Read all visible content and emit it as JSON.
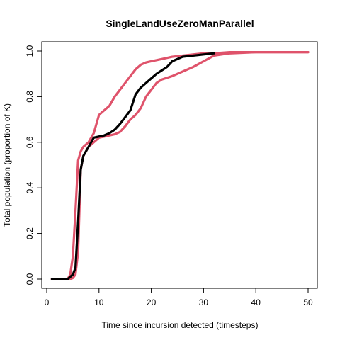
{
  "chart_data": {
    "type": "line",
    "title": "SingleLandUseZeroManParallel",
    "xlabel": "Time since incursion detected (timesteps)",
    "ylabel": "Total population (proportion of K)",
    "xlim": [
      0,
      50
    ],
    "ylim": [
      0,
      1
    ],
    "xticks": [
      "0",
      "10",
      "20",
      "30",
      "40",
      "50"
    ],
    "yticks": [
      "0.0",
      "0.2",
      "0.4",
      "0.6",
      "0.8",
      "1.0"
    ],
    "grid": false,
    "legend": "none",
    "series": [
      {
        "color": "#df536b",
        "x": [
          1,
          4,
          4.5,
          5,
          5.5,
          6,
          6.5,
          7,
          8,
          9,
          10,
          11,
          12,
          13,
          14,
          15,
          16,
          17,
          18,
          19,
          20,
          22,
          24,
          26,
          28,
          30,
          32,
          35,
          40,
          45,
          50
        ],
        "values": [
          0,
          0,
          0.02,
          0.1,
          0.3,
          0.52,
          0.56,
          0.58,
          0.6,
          0.64,
          0.72,
          0.74,
          0.76,
          0.8,
          0.83,
          0.86,
          0.89,
          0.92,
          0.94,
          0.95,
          0.955,
          0.965,
          0.975,
          0.98,
          0.985,
          0.99,
          0.99,
          0.995,
          0.995,
          0.995,
          0.995
        ]
      },
      {
        "color": "#df536b",
        "x": [
          1,
          4,
          4.5,
          5,
          5.5,
          6,
          6.5,
          7,
          8,
          9,
          10,
          11,
          12,
          13,
          14,
          15,
          16,
          17,
          18,
          19,
          20,
          21,
          22,
          24,
          26,
          28,
          30,
          32,
          35,
          40,
          45,
          50
        ],
        "values": [
          0,
          0,
          0,
          0.005,
          0.02,
          0.12,
          0.48,
          0.54,
          0.58,
          0.6,
          0.62,
          0.625,
          0.63,
          0.635,
          0.645,
          0.67,
          0.7,
          0.72,
          0.75,
          0.8,
          0.83,
          0.86,
          0.875,
          0.89,
          0.91,
          0.93,
          0.955,
          0.98,
          0.99,
          0.995,
          0.995,
          0.995
        ]
      },
      {
        "color": "#000000",
        "x": [
          1,
          4,
          5,
          5.5,
          6,
          6.5,
          7,
          8,
          9,
          10,
          11,
          12,
          13,
          14,
          15,
          16,
          17,
          18,
          19,
          20,
          21,
          22,
          23,
          24,
          25,
          26,
          28,
          30,
          32
        ],
        "values": [
          0,
          0,
          0.02,
          0.05,
          0.25,
          0.48,
          0.54,
          0.58,
          0.62,
          0.625,
          0.63,
          0.64,
          0.655,
          0.68,
          0.71,
          0.74,
          0.81,
          0.84,
          0.86,
          0.88,
          0.9,
          0.915,
          0.93,
          0.955,
          0.965,
          0.975,
          0.98,
          0.985,
          0.99
        ]
      }
    ]
  }
}
